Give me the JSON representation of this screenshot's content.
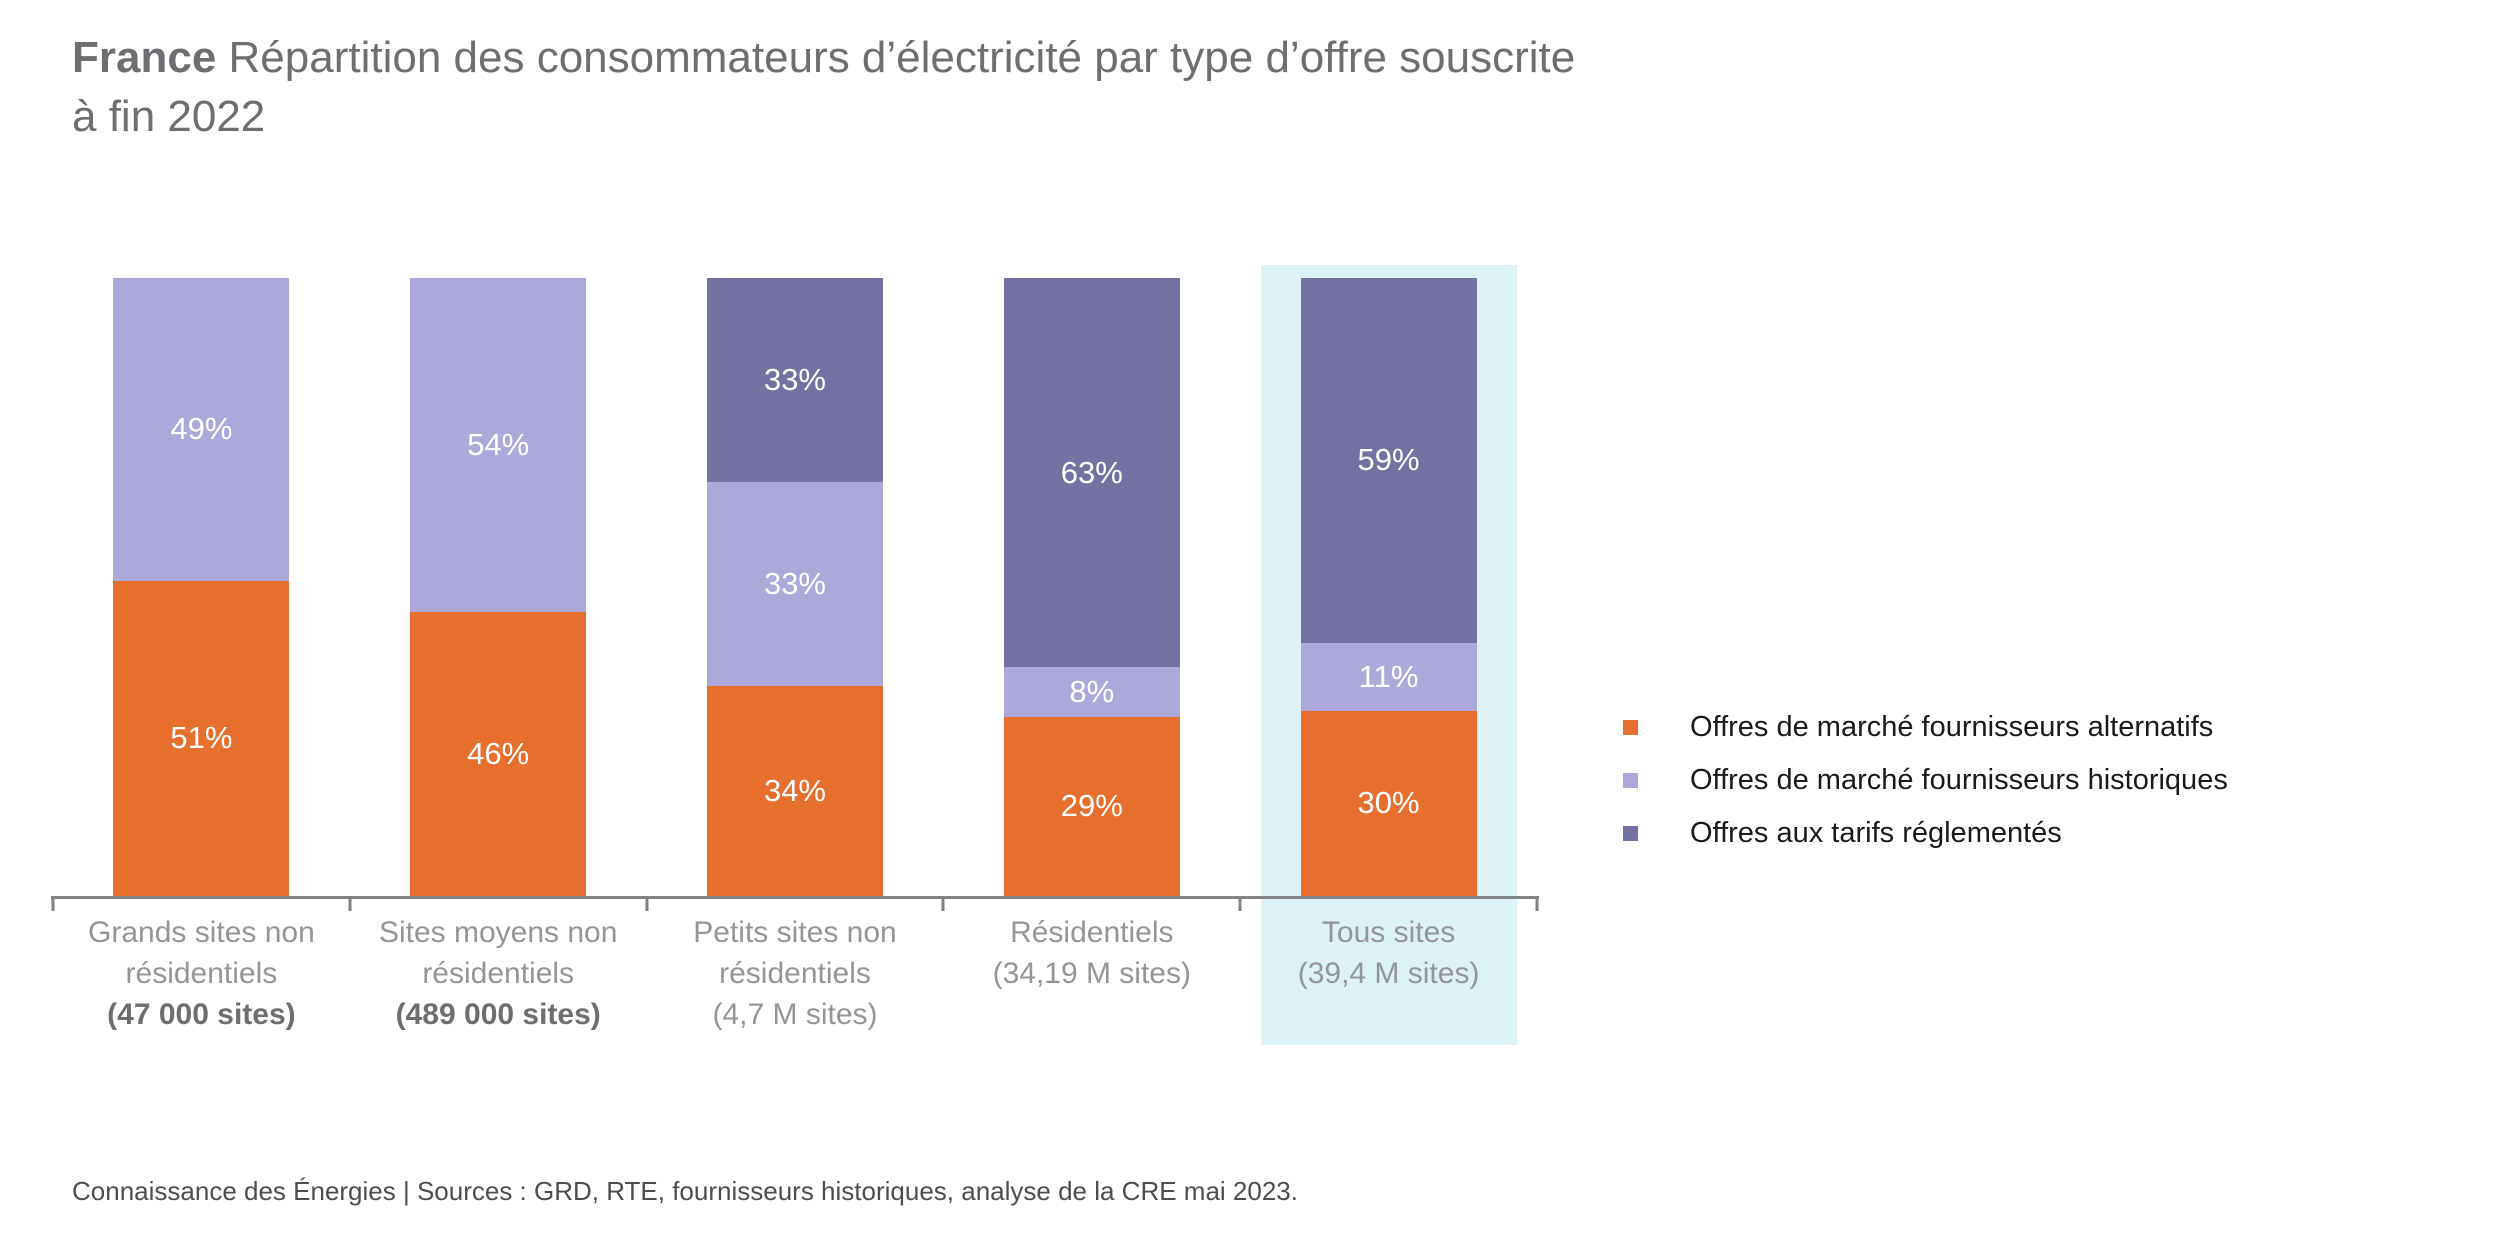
{
  "title": {
    "bold": "France",
    "rest": " Répartition des consommateurs d’électricité par type d’offre souscrite",
    "line2": "à fin 2022"
  },
  "chart_data": {
    "type": "bar",
    "stacked": true,
    "orientation": "vertical",
    "unit": "%",
    "ylim": [
      0,
      100
    ],
    "grid": false,
    "value_labels": "inside-white",
    "legend_position": "right",
    "categories": [
      {
        "name": "Grands sites non résidentiels",
        "label_lines": [
          "Grands sites non",
          "résidentiels"
        ],
        "sites": "(47 000 sites)",
        "sites_bold": true
      },
      {
        "name": "Sites moyens non résidentiels",
        "label_lines": [
          "Sites moyens non",
          "résidentiels"
        ],
        "sites": "(489 000 sites)",
        "sites_bold": true
      },
      {
        "name": "Petits sites non résidentiels",
        "label_lines": [
          "Petits sites non",
          "résidentiels"
        ],
        "sites": "(4,7 M sites)",
        "sites_bold": false
      },
      {
        "name": "Résidentiels",
        "label_lines": [
          "Résidentiels"
        ],
        "sites": "(34,19 M sites)",
        "sites_bold": false
      },
      {
        "name": "Tous sites",
        "label_lines": [
          "Tous sites"
        ],
        "sites": "(39,4 M sites)",
        "sites_bold": false
      }
    ],
    "series": [
      {
        "name": "Offres de marché fournisseurs alternatifs",
        "color": "#E76F2E",
        "values": [
          51,
          46,
          34,
          29,
          30
        ]
      },
      {
        "name": "Offres de marché fournisseurs historiques",
        "color": "#ACA8D9",
        "values": [
          49,
          54,
          33,
          8,
          11
        ]
      },
      {
        "name": "Offres aux tarifs réglementés",
        "color": "#7370A2",
        "values": [
          0,
          0,
          33,
          63,
          59
        ]
      }
    ],
    "highlight": {
      "category": "Tous sites",
      "color": "#DCF2F6"
    }
  },
  "footer": "Connaissance des Énergies | Sources : GRD, RTE, fournisseurs historiques, analyse de la CRE mai 2023.",
  "colors": {
    "background": "#FFFFFF",
    "axis": "#808285",
    "title_text": "#6D6E71",
    "category_label": "#939598",
    "category_label_emphasis": "#6D6E71",
    "legend_text": "#1A1A1A",
    "footer_text": "#4D4D4F"
  }
}
